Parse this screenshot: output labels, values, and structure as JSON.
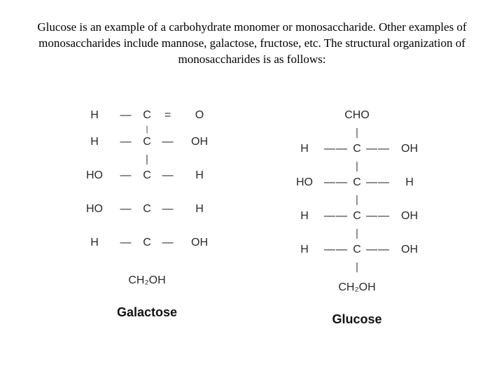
{
  "intro_text": "Glucose is an example of a carbohydrate monomer or monosaccharide. Other examples of monosaccharides include mannose, galactose, fructose, etc. The structural organization of monosaccharides is as follows:",
  "molecules": {
    "galactose": {
      "name": "Galactose",
      "rows": [
        {
          "left": "H",
          "bondL": "—",
          "mid": "C",
          "bondR": "=",
          "right": "O"
        },
        {
          "left": "H",
          "bondL": "—",
          "mid": "C",
          "bondR": "—",
          "right": "OH"
        },
        {
          "left": "HO",
          "bondL": "—",
          "mid": "C",
          "bondR": "—",
          "right": "H"
        },
        {
          "left": "HO",
          "bondL": "—",
          "mid": "C",
          "bondR": "—",
          "right": "H"
        },
        {
          "left": "H",
          "bondL": "—",
          "mid": "C",
          "bondR": "—",
          "right": "OH"
        }
      ],
      "terminal": "CH₂OH"
    },
    "glucose": {
      "name": "Glucose",
      "top": "CHO",
      "rows": [
        {
          "left": "H",
          "bondL": "——",
          "mid": "C",
          "bondR": "——",
          "right": "OH"
        },
        {
          "left": "HO",
          "bondL": "——",
          "mid": "C",
          "bondR": "——",
          "right": "H"
        },
        {
          "left": "H",
          "bondL": "——",
          "mid": "C",
          "bondR": "——",
          "right": "OH"
        },
        {
          "left": "H",
          "bondL": "——",
          "mid": "C",
          "bondR": "——",
          "right": "OH"
        }
      ],
      "terminal": "CH₂OH"
    }
  },
  "colors": {
    "bg": "#ffffff",
    "text": "#000000",
    "diagram_text": "#2a2a2a"
  }
}
